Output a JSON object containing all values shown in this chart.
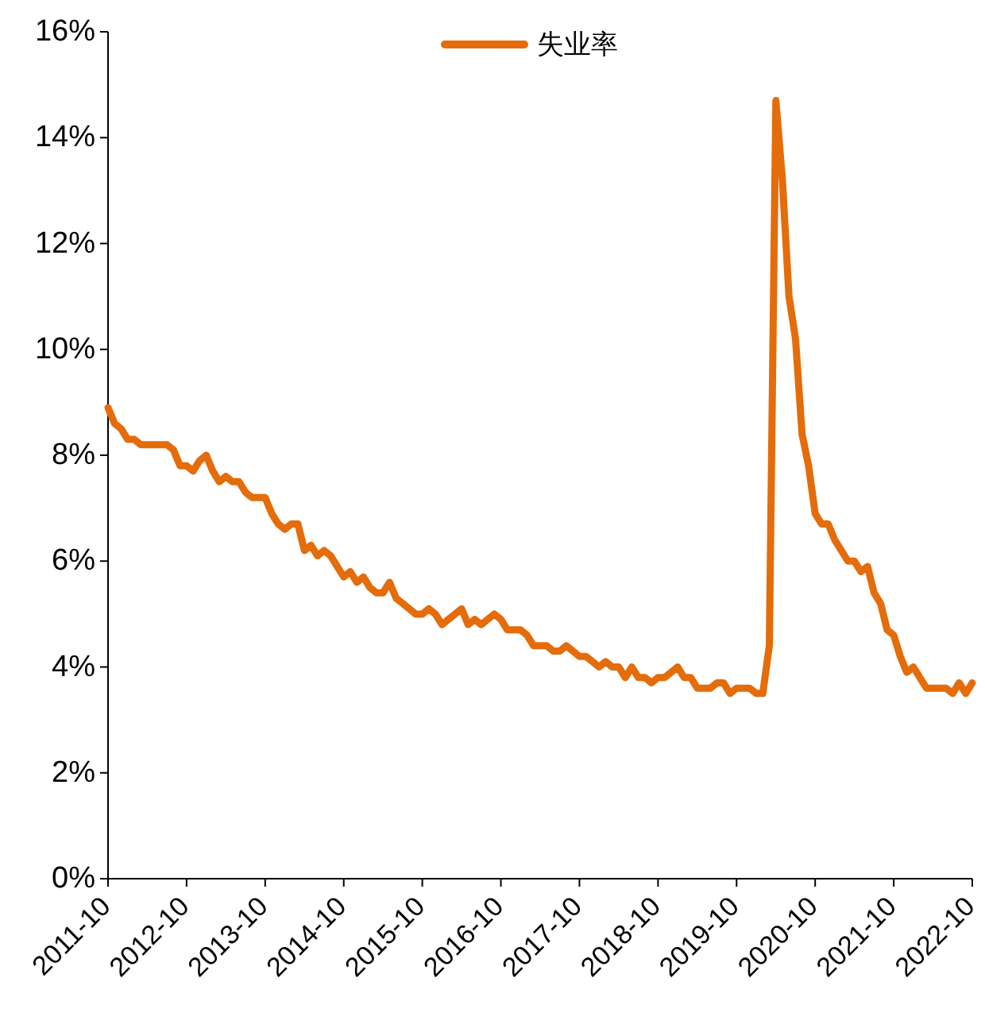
{
  "chart_data": {
    "type": "line",
    "legend": "top",
    "line_style": "solid",
    "grid": false,
    "x": [
      "2011-10",
      "2011-11",
      "2011-12",
      "2012-01",
      "2012-02",
      "2012-03",
      "2012-04",
      "2012-05",
      "2012-06",
      "2012-07",
      "2012-08",
      "2012-09",
      "2012-10",
      "2012-11",
      "2012-12",
      "2013-01",
      "2013-02",
      "2013-03",
      "2013-04",
      "2013-05",
      "2013-06",
      "2013-07",
      "2013-08",
      "2013-09",
      "2013-10",
      "2013-11",
      "2013-12",
      "2014-01",
      "2014-02",
      "2014-03",
      "2014-04",
      "2014-05",
      "2014-06",
      "2014-07",
      "2014-08",
      "2014-09",
      "2014-10",
      "2014-11",
      "2014-12",
      "2015-01",
      "2015-02",
      "2015-03",
      "2015-04",
      "2015-05",
      "2015-06",
      "2015-07",
      "2015-08",
      "2015-09",
      "2015-10",
      "2015-11",
      "2015-12",
      "2016-01",
      "2016-02",
      "2016-03",
      "2016-04",
      "2016-05",
      "2016-06",
      "2016-07",
      "2016-08",
      "2016-09",
      "2016-10",
      "2016-11",
      "2016-12",
      "2017-01",
      "2017-02",
      "2017-03",
      "2017-04",
      "2017-05",
      "2017-06",
      "2017-07",
      "2017-08",
      "2017-09",
      "2017-10",
      "2017-11",
      "2017-12",
      "2018-01",
      "2018-02",
      "2018-03",
      "2018-04",
      "2018-05",
      "2018-06",
      "2018-07",
      "2018-08",
      "2018-09",
      "2018-10",
      "2018-11",
      "2018-12",
      "2019-01",
      "2019-02",
      "2019-03",
      "2019-04",
      "2019-05",
      "2019-06",
      "2019-07",
      "2019-08",
      "2019-09",
      "2019-10",
      "2019-11",
      "2019-12",
      "2020-01",
      "2020-02",
      "2020-03",
      "2020-04",
      "2020-05",
      "2020-06",
      "2020-07",
      "2020-08",
      "2020-09",
      "2020-10",
      "2020-11",
      "2020-12",
      "2021-01",
      "2021-02",
      "2021-03",
      "2021-04",
      "2021-05",
      "2021-06",
      "2021-07",
      "2021-08",
      "2021-09",
      "2021-10",
      "2021-11",
      "2021-12",
      "2022-01",
      "2022-02",
      "2022-03",
      "2022-04",
      "2022-05",
      "2022-06",
      "2022-07",
      "2022-08",
      "2022-09",
      "2022-10"
    ],
    "series": [
      {
        "name": "失业率",
        "color": "#e46c0a",
        "values": [
          8.9,
          8.6,
          8.5,
          8.3,
          8.3,
          8.2,
          8.2,
          8.2,
          8.2,
          8.2,
          8.1,
          7.8,
          7.8,
          7.7,
          7.9,
          8.0,
          7.7,
          7.5,
          7.6,
          7.5,
          7.5,
          7.3,
          7.2,
          7.2,
          7.2,
          6.9,
          6.7,
          6.6,
          6.7,
          6.7,
          6.2,
          6.3,
          6.1,
          6.2,
          6.1,
          5.9,
          5.7,
          5.8,
          5.6,
          5.7,
          5.5,
          5.4,
          5.4,
          5.6,
          5.3,
          5.2,
          5.1,
          5.0,
          5.0,
          5.1,
          5.0,
          4.8,
          4.9,
          5.0,
          5.1,
          4.8,
          4.9,
          4.8,
          4.9,
          5.0,
          4.9,
          4.7,
          4.7,
          4.7,
          4.6,
          4.4,
          4.4,
          4.4,
          4.3,
          4.3,
          4.4,
          4.3,
          4.2,
          4.2,
          4.1,
          4.0,
          4.1,
          4.0,
          4.0,
          3.8,
          4.0,
          3.8,
          3.8,
          3.7,
          3.8,
          3.8,
          3.9,
          4.0,
          3.8,
          3.8,
          3.6,
          3.6,
          3.6,
          3.7,
          3.7,
          3.5,
          3.6,
          3.6,
          3.6,
          3.5,
          3.5,
          4.4,
          14.7,
          13.2,
          11.0,
          10.2,
          8.4,
          7.8,
          6.9,
          6.7,
          6.7,
          6.4,
          6.2,
          6.0,
          6.0,
          5.8,
          5.9,
          5.4,
          5.2,
          4.7,
          4.6,
          4.2,
          3.9,
          4.0,
          3.8,
          3.6,
          3.6,
          3.6,
          3.6,
          3.5,
          3.7,
          3.5,
          3.7
        ]
      }
    ],
    "xlim": [
      "2011-10",
      "2022-10"
    ],
    "xticks": [
      "2011-10",
      "2012-10",
      "2013-10",
      "2014-10",
      "2015-10",
      "2016-10",
      "2017-10",
      "2018-10",
      "2019-10",
      "2020-10",
      "2021-10",
      "2022-10"
    ],
    "ylim": [
      0,
      16
    ],
    "yticks": [
      {
        "value": 0,
        "label": "0%"
      },
      {
        "value": 2,
        "label": "2%"
      },
      {
        "value": 4,
        "label": "4%"
      },
      {
        "value": 6,
        "label": "6%"
      },
      {
        "value": 8,
        "label": "8%"
      },
      {
        "value": 10,
        "label": "10%"
      },
      {
        "value": 12,
        "label": "12%"
      },
      {
        "value": 14,
        "label": "14%"
      },
      {
        "value": 16,
        "label": "16%"
      }
    ]
  }
}
